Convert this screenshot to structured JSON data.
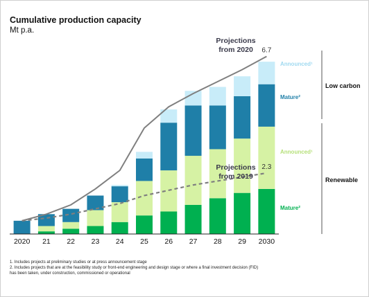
{
  "title": "Cumulative production capacity",
  "subtitle": "Mt p.a.",
  "chart_data": {
    "type": "bar",
    "stacked": true,
    "categories": [
      "2020",
      "21",
      "22",
      "23",
      "24",
      "25",
      "26",
      "27",
      "28",
      "29",
      "2030"
    ],
    "ylim": [
      0,
      7.0
    ],
    "series": [
      {
        "name": "Mature²",
        "group": "Renewable",
        "color": "#00b050",
        "values": [
          0.0,
          0.1,
          0.2,
          0.3,
          0.45,
          0.7,
          0.85,
          1.1,
          1.35,
          1.55,
          1.7
        ]
      },
      {
        "name": "Announced¹",
        "group": "Renewable",
        "color": "#d6f2a4",
        "values": [
          0.0,
          0.2,
          0.25,
          0.6,
          0.75,
          1.3,
          1.55,
          1.85,
          1.85,
          2.05,
          2.35
        ]
      },
      {
        "name": "Mature²",
        "group": "Low carbon",
        "color": "#1f7fa8",
        "values": [
          0.5,
          0.45,
          0.5,
          0.55,
          0.6,
          0.85,
          1.8,
          1.9,
          1.65,
          1.6,
          1.6
        ]
      },
      {
        "name": "Announced¹",
        "group": "Low carbon",
        "color": "#c8ecf9",
        "values": [
          0.0,
          0.0,
          0.0,
          0.0,
          0.05,
          0.25,
          0.5,
          0.55,
          0.7,
          0.75,
          0.85
        ]
      }
    ],
    "lines": [
      {
        "name": "Projections from 2020",
        "style": "solid",
        "color": "#7f7f7f",
        "values": [
          0.5,
          0.75,
          1.1,
          1.7,
          2.4,
          4.0,
          4.8,
          5.3,
          5.75,
          6.2,
          6.7
        ],
        "end_label": "6.7"
      },
      {
        "name": "Projections from 2019",
        "style": "dashed",
        "color": "#7f7f7f",
        "values": [
          0.5,
          0.6,
          0.75,
          0.95,
          1.15,
          1.45,
          1.65,
          1.85,
          2.0,
          2.15,
          2.3
        ],
        "end_label": "2.3"
      }
    ],
    "line_labels": [
      {
        "text_line1": "Projections",
        "text_line2": "from 2020"
      },
      {
        "text_line1": "Projections",
        "text_line2": "from 2019"
      }
    ],
    "segment_labels": [
      {
        "text": "Announced¹",
        "color": "#9fd9f0"
      },
      {
        "text": "Mature²",
        "color": "#1f7fa8"
      },
      {
        "text": "Announced¹",
        "color": "#b6e07a"
      },
      {
        "text": "Mature²",
        "color": "#00b050"
      }
    ],
    "group_labels": [
      "Low carbon",
      "Renewable"
    ]
  },
  "footnotes": [
    "1.  Includes projects at preliminary studies or at press announcement stage",
    "2.  Includes projects that are at the feasibility study or front-end engineering and design stage or where a final investment decision (FID)",
    "     has been taken, under construction, commissioned or operational"
  ]
}
